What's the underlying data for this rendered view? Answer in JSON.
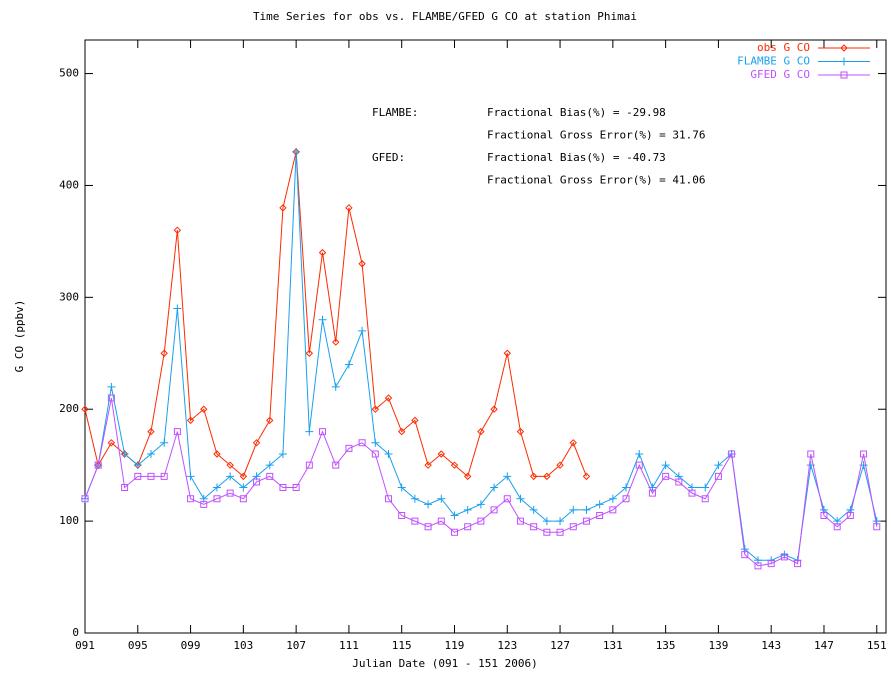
{
  "chart_data": {
    "type": "line",
    "title": "Time Series for obs vs. FLAMBE/GFED G CO at station Phimai",
    "x_label": "Julian Date    (091 - 151 2006)",
    "y_label": "G CO  (ppbv)",
    "legend": "top-right",
    "annotations": [
      {
        "label": "FLAMBE:",
        "lines": [
          "Fractional Bias(%) = -29.98",
          "Fractional Gross Error(%) = 31.76"
        ]
      },
      {
        "label": "GFED:",
        "lines": [
          "Fractional Bias(%) = -40.73",
          "Fractional Gross Error(%) = 41.06"
        ]
      }
    ],
    "xlim": [
      91,
      151.7
    ],
    "ylim": [
      0,
      530
    ],
    "xticks": [
      {
        "value": 91,
        "label": "091"
      },
      {
        "value": 95,
        "label": "095"
      },
      {
        "value": 99,
        "label": "099"
      },
      {
        "value": 103,
        "label": "103"
      },
      {
        "value": 107,
        "label": "107"
      },
      {
        "value": 111,
        "label": "111"
      },
      {
        "value": 115,
        "label": "115"
      },
      {
        "value": 119,
        "label": "119"
      },
      {
        "value": 123,
        "label": "123"
      },
      {
        "value": 127,
        "label": "127"
      },
      {
        "value": 131,
        "label": "131"
      },
      {
        "value": 135,
        "label": "135"
      },
      {
        "value": 139,
        "label": "139"
      },
      {
        "value": 143,
        "label": "143"
      },
      {
        "value": 147,
        "label": "147"
      },
      {
        "value": 151,
        "label": "151"
      }
    ],
    "yticks": [
      0,
      100,
      200,
      300,
      400,
      500
    ],
    "x": [
      91,
      92,
      93,
      94,
      95,
      96,
      97,
      98,
      99,
      100,
      101,
      102,
      103,
      104,
      105,
      106,
      107,
      108,
      109,
      110,
      111,
      112,
      113,
      114,
      115,
      116,
      117,
      118,
      119,
      120,
      121,
      122,
      123,
      124,
      125,
      126,
      127,
      128,
      129,
      130,
      131,
      132,
      133,
      134,
      135,
      136,
      137,
      138,
      139,
      140,
      141,
      142,
      143,
      144,
      145,
      146,
      147,
      148,
      149,
      150,
      151
    ],
    "series": [
      {
        "name": "obs G CO",
        "color": "#ff2a00",
        "marker": "diamond",
        "values": [
          200,
          150,
          170,
          160,
          150,
          180,
          250,
          360,
          190,
          200,
          160,
          150,
          140,
          170,
          190,
          380,
          430,
          250,
          340,
          260,
          380,
          330,
          200,
          210,
          180,
          190,
          150,
          160,
          150,
          140,
          180,
          200,
          250,
          180,
          140,
          140,
          150,
          170,
          140,
          null,
          null,
          null,
          null,
          null,
          null,
          null,
          null,
          null,
          null,
          null,
          null,
          null,
          null,
          null,
          null,
          null,
          null,
          null,
          null,
          null,
          null
        ]
      },
      {
        "name": "FLAMBE G CO",
        "color": "#1aa0ee",
        "marker": "plus",
        "values": [
          120,
          150,
          220,
          160,
          150,
          160,
          170,
          290,
          140,
          120,
          130,
          140,
          130,
          140,
          150,
          160,
          430,
          180,
          280,
          220,
          240,
          270,
          170,
          160,
          130,
          120,
          115,
          120,
          105,
          110,
          115,
          130,
          140,
          120,
          110,
          100,
          100,
          110,
          110,
          115,
          120,
          130,
          160,
          130,
          150,
          140,
          130,
          130,
          150,
          160,
          75,
          65,
          65,
          70,
          65,
          150,
          110,
          100,
          110,
          150,
          100
        ]
      },
      {
        "name": "GFED G CO",
        "color": "#c050ff",
        "marker": "square",
        "values": [
          120,
          150,
          210,
          130,
          140,
          140,
          140,
          180,
          120,
          115,
          120,
          125,
          120,
          135,
          140,
          130,
          130,
          150,
          180,
          150,
          165,
          170,
          160,
          120,
          105,
          100,
          95,
          100,
          90,
          95,
          100,
          110,
          120,
          100,
          95,
          90,
          90,
          95,
          100,
          105,
          110,
          120,
          150,
          125,
          140,
          135,
          125,
          120,
          140,
          160,
          70,
          60,
          62,
          68,
          62,
          160,
          105,
          95,
          105,
          160,
          95
        ]
      }
    ]
  }
}
